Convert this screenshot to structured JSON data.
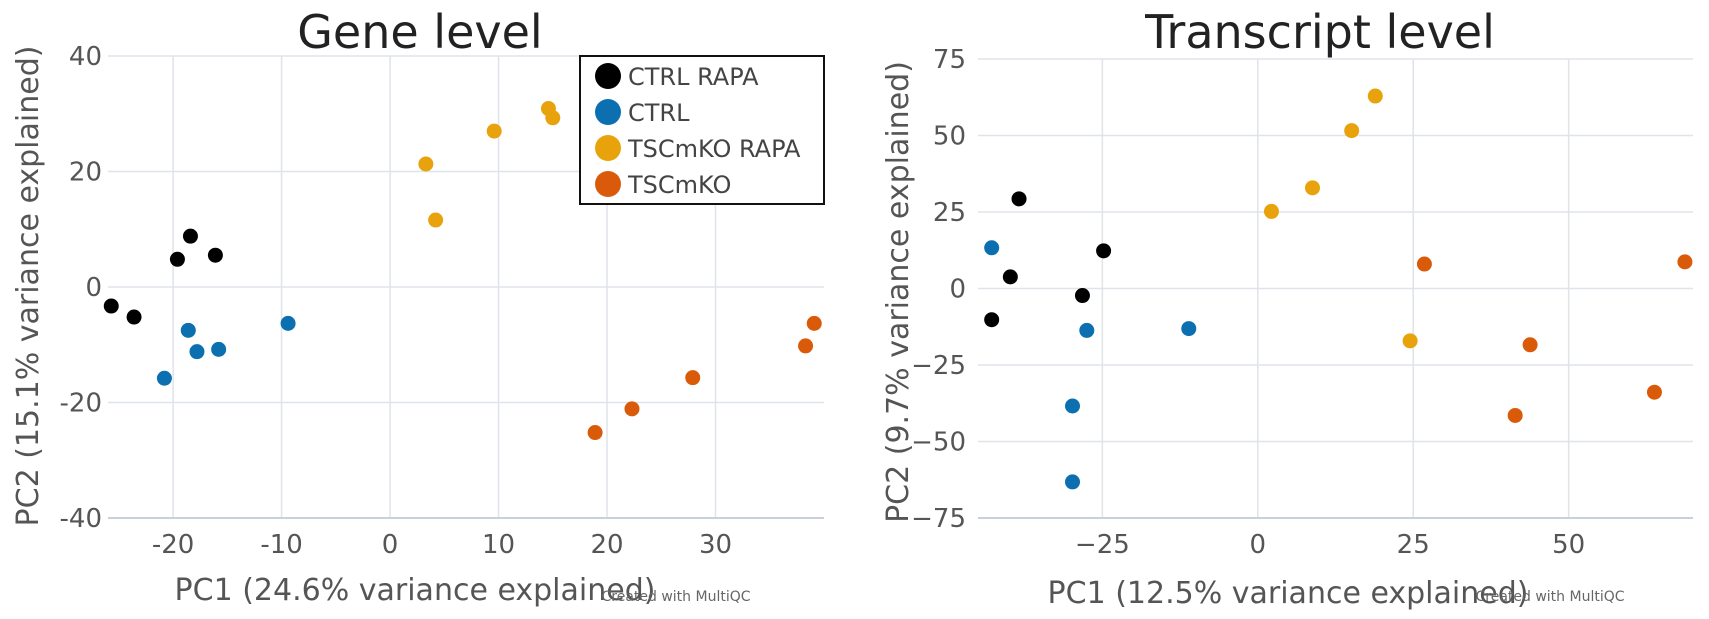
{
  "chart_data": [
    {
      "type": "scatter",
      "title": "Gene level",
      "xlabel": "PC1 (24.6% variance explained)",
      "ylabel": "PC2 (15.1% variance explained)",
      "credit": "Created with MultiQC",
      "xlim": [
        -26,
        40
      ],
      "ylim": [
        -40,
        40
      ],
      "xticks": [
        -20,
        -10,
        0,
        10,
        20,
        30
      ],
      "yticks": [
        -40,
        -20,
        0,
        20,
        40
      ],
      "grid": true,
      "legend_position": "top-right",
      "series": [
        {
          "name": "CTRL RAPA",
          "color": "#000000",
          "points": [
            [
              -25.7,
              -3.3
            ],
            [
              -23.6,
              -5.2
            ],
            [
              -19.6,
              4.8
            ],
            [
              -18.4,
              8.8
            ],
            [
              -16.1,
              5.5
            ]
          ]
        },
        {
          "name": "CTRL",
          "color": "#0b6fb0",
          "points": [
            [
              -20.8,
              -15.8
            ],
            [
              -18.6,
              -7.5
            ],
            [
              -17.8,
              -11.2
            ],
            [
              -15.8,
              -10.8
            ],
            [
              -9.4,
              -6.3
            ]
          ]
        },
        {
          "name": "TSCmKO RAPA",
          "color": "#e8a30c",
          "points": [
            [
              3.3,
              21.3
            ],
            [
              4.2,
              11.6
            ],
            [
              9.6,
              27.0
            ],
            [
              14.6,
              30.9
            ],
            [
              15.0,
              29.3
            ]
          ]
        },
        {
          "name": "TSCmKO",
          "color": "#d95b0a",
          "points": [
            [
              18.9,
              -25.2
            ],
            [
              22.3,
              -21.1
            ],
            [
              27.9,
              -15.7
            ],
            [
              38.3,
              -10.2
            ],
            [
              39.1,
              -6.3
            ]
          ]
        }
      ]
    },
    {
      "type": "scatter",
      "title": "Transcript level",
      "xlabel": "PC1 (12.5% variance explained)",
      "ylabel": "PC2 (9.7% variance explained)",
      "credit": "Created with MultiQC",
      "xlim": [
        -45,
        70
      ],
      "ylim": [
        -75,
        75
      ],
      "xticks": [
        -25,
        0,
        25,
        50
      ],
      "yticks": [
        -75,
        -50,
        -25,
        0,
        25,
        50,
        75
      ],
      "grid": true,
      "legend_position": "",
      "series": [
        {
          "name": "CTRL RAPA",
          "color": "#000000",
          "points": [
            [
              -38.4,
              29.3
            ],
            [
              -42.8,
              -10.2
            ],
            [
              -39.8,
              3.8
            ],
            [
              -28.2,
              -2.3
            ],
            [
              -24.8,
              12.3
            ]
          ]
        },
        {
          "name": "CTRL",
          "color": "#0b6fb0",
          "points": [
            [
              -42.8,
              13.3
            ],
            [
              -27.5,
              -13.7
            ],
            [
              -11.1,
              -13.1
            ],
            [
              -29.8,
              -38.4
            ],
            [
              -29.8,
              -63.2
            ]
          ]
        },
        {
          "name": "TSCmKO RAPA",
          "color": "#e8a30c",
          "points": [
            [
              2.2,
              25.2
            ],
            [
              8.8,
              32.9
            ],
            [
              15.1,
              51.6
            ],
            [
              18.9,
              62.9
            ],
            [
              24.5,
              -17.1
            ]
          ]
        },
        {
          "name": "TSCmKO",
          "color": "#d95b0a",
          "points": [
            [
              26.8,
              8.0
            ],
            [
              41.4,
              -41.5
            ],
            [
              43.8,
              -18.4
            ],
            [
              63.8,
              -33.9
            ],
            [
              68.7,
              8.7
            ]
          ]
        }
      ]
    }
  ],
  "legend": {
    "items": [
      {
        "label": "CTRL RAPA",
        "color": "#000000"
      },
      {
        "label": "CTRL",
        "color": "#0b6fb0"
      },
      {
        "label": "TSCmKO RAPA",
        "color": "#e8a30c"
      },
      {
        "label": "TSCmKO",
        "color": "#d95b0a"
      }
    ]
  }
}
